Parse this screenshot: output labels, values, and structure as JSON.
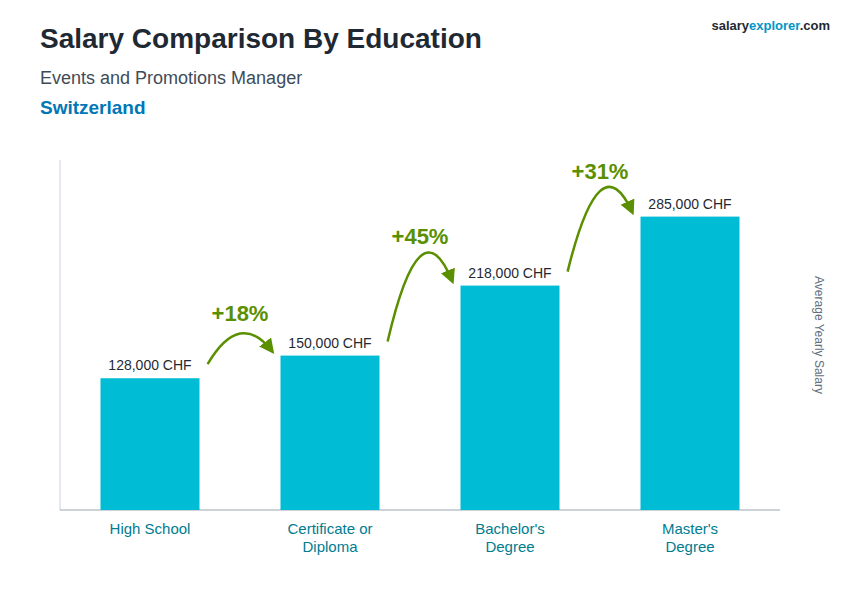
{
  "chart_data": {
    "type": "bar",
    "title": "Salary Comparison By Education",
    "subtitle": "Events and Promotions Manager",
    "annotations": [
      "Switzerland",
      "salary",
      "explorer",
      ".com"
    ],
    "y_label": "Average Yearly Salary",
    "categories": [
      "High School",
      "Certificate or\nDiploma",
      "Bachelor's\nDegree",
      "Master's\nDegree"
    ],
    "values": [
      128000,
      150000,
      218000,
      285000
    ],
    "value_labels": [
      "128,000 CHF",
      "150,000 CHF",
      "218,000 CHF",
      "285,000 CHF"
    ],
    "change_labels": [
      "+18%",
      "+45%",
      "+31%"
    ],
    "color": "#00bcd4",
    "ylim": [
      0,
      340000
    ],
    "tick_labels": "x",
    "data_labels": true,
    "grid": false
  }
}
